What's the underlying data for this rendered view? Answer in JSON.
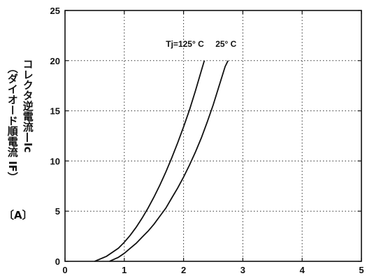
{
  "chart_data": {
    "type": "line",
    "xlabel": "",
    "ylabel": {
      "line1": "コレクタ逆電流—Ic",
      "line2": "（ダイオード順電流 IF）",
      "unit": "〔A〕"
    },
    "xlim": [
      0,
      5
    ],
    "ylim": [
      0,
      25
    ],
    "xticks": [
      "0",
      "1",
      "2",
      "3",
      "4",
      "5"
    ],
    "yticks": [
      "0",
      "5",
      "10",
      "15",
      "20",
      "25"
    ],
    "grid": true,
    "series": [
      {
        "name": "Tj=125° C",
        "x": [
          0.5,
          0.7,
          0.9,
          1.0,
          1.1,
          1.2,
          1.3,
          1.4,
          1.5,
          1.6,
          1.7,
          1.8,
          1.9,
          2.0,
          2.1,
          2.2,
          2.3,
          2.35
        ],
        "y": [
          0.0,
          0.5,
          1.3,
          1.9,
          2.6,
          3.4,
          4.3,
          5.3,
          6.4,
          7.6,
          8.9,
          10.3,
          11.8,
          13.4,
          15.1,
          17.0,
          19.0,
          20.0
        ]
      },
      {
        "name": "25° C",
        "x": [
          0.75,
          0.9,
          1.0,
          1.1,
          1.2,
          1.3,
          1.4,
          1.5,
          1.6,
          1.7,
          1.8,
          1.9,
          2.0,
          2.1,
          2.2,
          2.3,
          2.4,
          2.5,
          2.6,
          2.7,
          2.75
        ],
        "y": [
          0.0,
          0.4,
          0.8,
          1.3,
          1.8,
          2.4,
          3.0,
          3.7,
          4.5,
          5.3,
          6.3,
          7.3,
          8.4,
          9.6,
          10.9,
          12.3,
          13.9,
          15.6,
          17.5,
          19.4,
          20.0
        ]
      }
    ]
  }
}
